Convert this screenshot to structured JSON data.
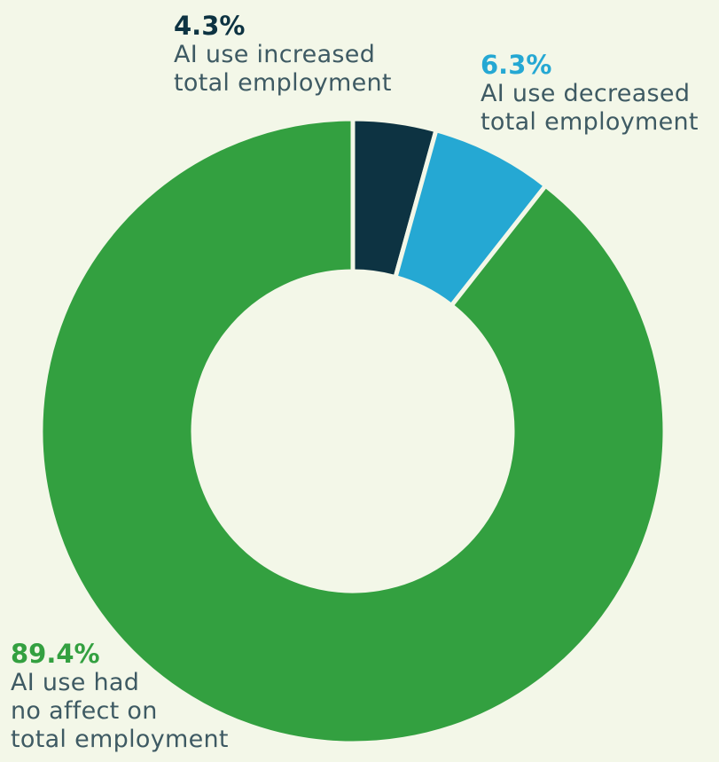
{
  "chart_data": {
    "type": "pie",
    "donut": true,
    "slices": [
      {
        "percent_text": "4.3%",
        "value": 4.3,
        "label_lines": [
          "AI use increased",
          "total employment"
        ],
        "color": "#0d3342"
      },
      {
        "percent_text": "6.3%",
        "value": 6.3,
        "label_lines": [
          "AI use decreased",
          "total employment"
        ],
        "color": "#25a8d3"
      },
      {
        "percent_text": "89.4%",
        "value": 89.4,
        "label_lines": [
          "AI use had",
          "no affect on",
          "total employment"
        ],
        "color": "#33a040"
      }
    ]
  }
}
